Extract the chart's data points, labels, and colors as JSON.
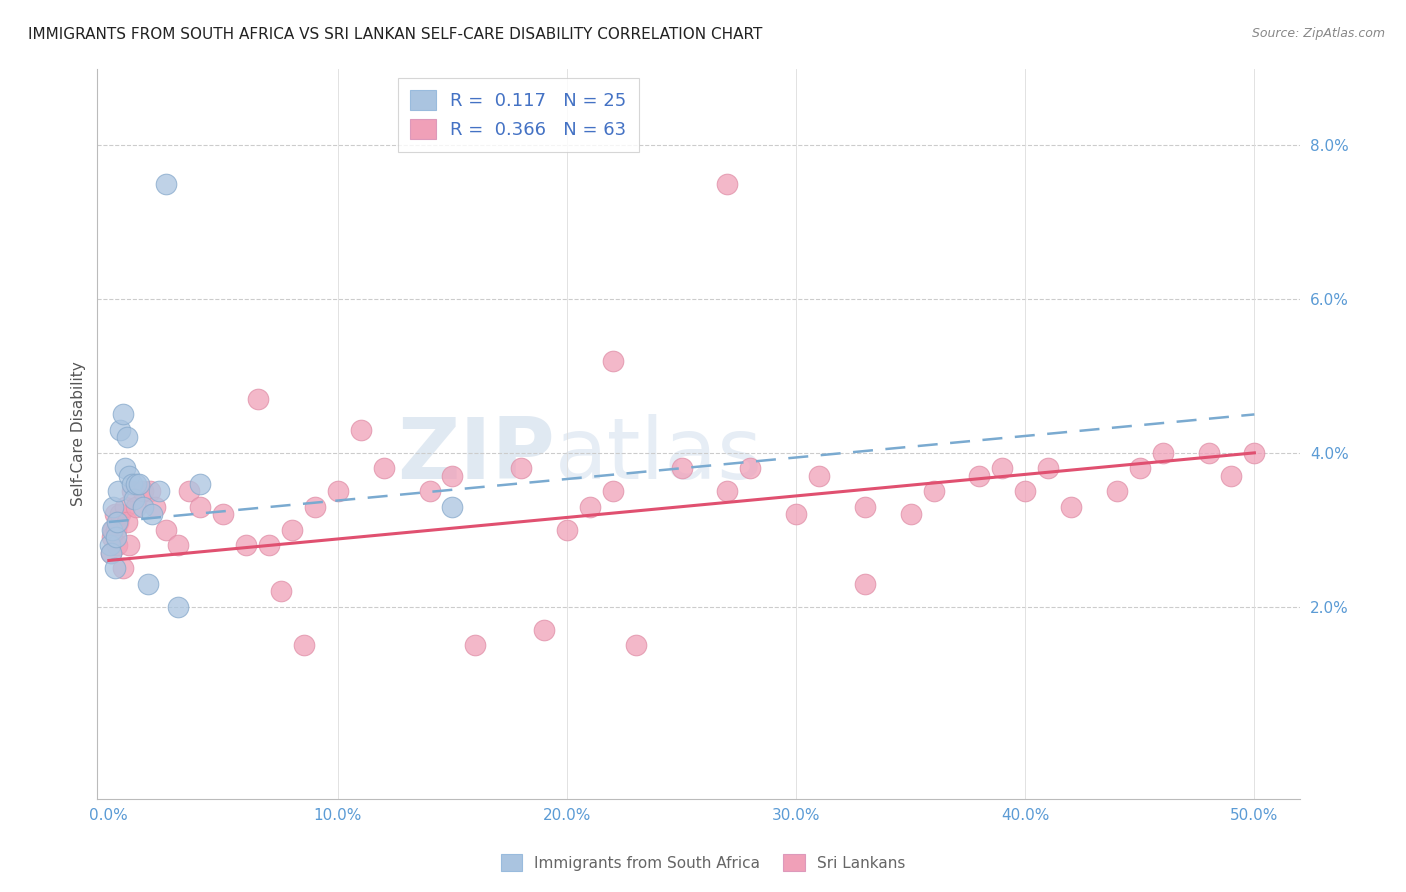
{
  "title": "IMMIGRANTS FROM SOUTH AFRICA VS SRI LANKAN SELF-CARE DISABILITY CORRELATION CHART",
  "source": "Source: ZipAtlas.com",
  "ylabel": "Self-Care Disability",
  "xlabel_vals": [
    0,
    10,
    20,
    30,
    40,
    50
  ],
  "ylabel_vals": [
    2,
    4,
    6,
    8
  ],
  "xlim": [
    -0.5,
    52
  ],
  "ylim": [
    -0.5,
    9.0
  ],
  "legend_entry1": "R =  0.117   N = 25",
  "legend_entry2": "R =  0.366   N = 63",
  "legend_label1": "Immigrants from South Africa",
  "legend_label2": "Sri Lankans",
  "blue_color": "#aac4e0",
  "pink_color": "#f0a0b8",
  "blue_dark": "#4472c4",
  "pink_dark": "#d04060",
  "axis_color": "#5b9bd5",
  "watermark_zip": "ZIP",
  "watermark_atlas": "atlas",
  "sa_x": [
    0.05,
    0.1,
    0.15,
    0.2,
    0.25,
    0.3,
    0.35,
    0.4,
    0.5,
    0.6,
    0.7,
    0.8,
    0.9,
    1.0,
    1.1,
    1.2,
    1.3,
    1.5,
    1.7,
    1.9,
    2.2,
    2.5,
    3.0,
    4.0,
    15.0
  ],
  "sa_y": [
    2.8,
    2.7,
    3.0,
    3.3,
    2.5,
    2.9,
    3.1,
    3.5,
    4.3,
    4.5,
    3.8,
    4.2,
    3.7,
    3.6,
    3.4,
    3.6,
    3.6,
    3.3,
    2.3,
    3.2,
    3.5,
    7.5,
    2.0,
    3.6,
    3.3
  ],
  "sl_x": [
    0.1,
    0.15,
    0.2,
    0.25,
    0.3,
    0.35,
    0.4,
    0.5,
    0.6,
    0.7,
    0.8,
    0.9,
    1.0,
    1.2,
    1.5,
    1.8,
    2.0,
    2.5,
    3.0,
    3.5,
    4.0,
    5.0,
    6.0,
    7.0,
    8.0,
    9.0,
    10.0,
    11.0,
    12.0,
    14.0,
    15.0,
    16.0,
    18.0,
    19.0,
    20.0,
    21.0,
    22.0,
    23.0,
    25.0,
    27.0,
    28.0,
    30.0,
    31.0,
    33.0,
    35.0,
    36.0,
    38.0,
    39.0,
    40.0,
    41.0,
    42.0,
    44.0,
    45.0,
    46.0,
    48.0,
    49.0,
    50.0,
    33.0,
    22.0,
    6.5,
    7.5,
    8.5,
    27.0
  ],
  "sl_y": [
    2.7,
    2.9,
    3.0,
    3.2,
    3.0,
    2.8,
    3.1,
    3.2,
    2.5,
    3.3,
    3.1,
    2.8,
    3.5,
    3.3,
    3.5,
    3.5,
    3.3,
    3.0,
    2.8,
    3.5,
    3.3,
    3.2,
    2.8,
    2.8,
    3.0,
    3.3,
    3.5,
    4.3,
    3.8,
    3.5,
    3.7,
    1.5,
    3.8,
    1.7,
    3.0,
    3.3,
    3.5,
    1.5,
    3.8,
    3.5,
    3.8,
    3.2,
    3.7,
    3.3,
    3.2,
    3.5,
    3.7,
    3.8,
    3.5,
    3.8,
    3.3,
    3.5,
    3.8,
    4.0,
    4.0,
    3.7,
    4.0,
    2.3,
    5.2,
    4.7,
    2.2,
    1.5,
    7.5
  ],
  "sa_line_x0": 0.0,
  "sa_line_y0": 3.1,
  "sa_line_x1": 50.0,
  "sa_line_y1": 4.5,
  "sl_line_x0": 0.0,
  "sl_line_y0": 2.6,
  "sl_line_x1": 50.0,
  "sl_line_y1": 4.0
}
